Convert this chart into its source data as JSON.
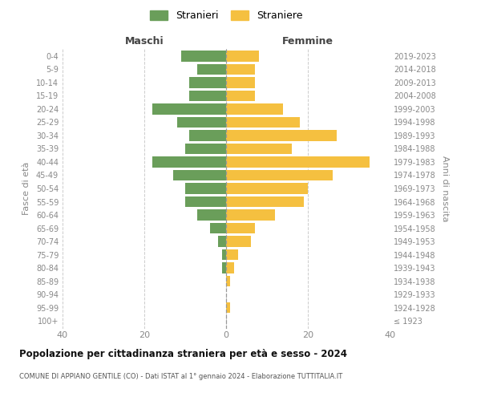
{
  "age_groups": [
    "100+",
    "95-99",
    "90-94",
    "85-89",
    "80-84",
    "75-79",
    "70-74",
    "65-69",
    "60-64",
    "55-59",
    "50-54",
    "45-49",
    "40-44",
    "35-39",
    "30-34",
    "25-29",
    "20-24",
    "15-19",
    "10-14",
    "5-9",
    "0-4"
  ],
  "birth_years": [
    "≤ 1923",
    "1924-1928",
    "1929-1933",
    "1934-1938",
    "1939-1943",
    "1944-1948",
    "1949-1953",
    "1954-1958",
    "1959-1963",
    "1964-1968",
    "1969-1973",
    "1974-1978",
    "1979-1983",
    "1984-1988",
    "1989-1993",
    "1994-1998",
    "1999-2003",
    "2004-2008",
    "2009-2013",
    "2014-2018",
    "2019-2023"
  ],
  "males": [
    0,
    0,
    0,
    0,
    1,
    1,
    2,
    4,
    7,
    10,
    10,
    13,
    18,
    10,
    9,
    12,
    18,
    9,
    9,
    7,
    11
  ],
  "females": [
    0,
    1,
    0,
    1,
    2,
    3,
    6,
    7,
    12,
    19,
    20,
    26,
    35,
    16,
    27,
    18,
    14,
    7,
    7,
    7,
    8
  ],
  "male_color": "#6a9e5a",
  "female_color": "#f5c040",
  "background_color": "#ffffff",
  "grid_color": "#cccccc",
  "title": "Popolazione per cittadinanza straniera per età e sesso - 2024",
  "subtitle": "COMUNE DI APPIANO GENTILE (CO) - Dati ISTAT al 1° gennaio 2024 - Elaborazione TUTTITALIA.IT",
  "xlabel_left": "Maschi",
  "xlabel_right": "Femmine",
  "ylabel_left": "Fasce di età",
  "ylabel_right": "Anni di nascita",
  "legend_male": "Stranieri",
  "legend_female": "Straniere",
  "xlim": 40,
  "bar_height": 0.8
}
